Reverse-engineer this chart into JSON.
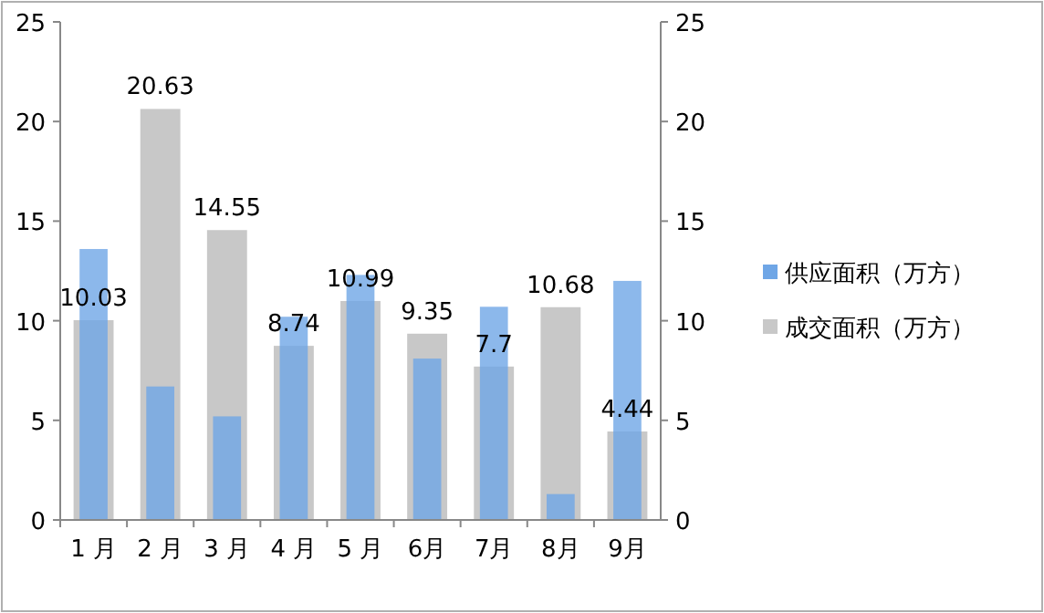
{
  "chart_data": {
    "type": "bar",
    "categories": [
      "1 月",
      "2 月",
      "3 月",
      "4 月",
      "5 月",
      "6月",
      "7月",
      "8月",
      "9月"
    ],
    "series": [
      {
        "name": "成交面积（万方）",
        "color": "#c8c8c8",
        "axis": "y2",
        "values": [
          10.03,
          20.63,
          14.55,
          8.74,
          10.99,
          9.35,
          7.7,
          10.68,
          4.44
        ],
        "value_labels": [
          "10.03",
          "20.63",
          "14.55",
          "8.74",
          "10.99",
          "9.35",
          "7.7",
          "10.68",
          "4.44"
        ]
      },
      {
        "name": "供应面积（万方）",
        "color": "#6fa6e6",
        "values": [
          13.6,
          6.7,
          5.2,
          10.2,
          12.3,
          8.1,
          10.7,
          1.3,
          12.0
        ]
      }
    ],
    "ylim": [
      0,
      25
    ],
    "yticks": [
      0,
      5,
      10,
      15,
      20,
      25
    ],
    "y2lim": [
      0,
      25
    ],
    "y2ticks": [
      0,
      5,
      10,
      15,
      20,
      25
    ],
    "legend": "right",
    "grid": false
  }
}
